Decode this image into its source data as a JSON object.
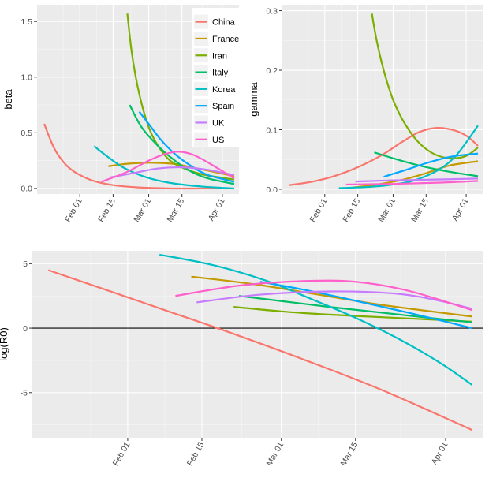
{
  "colors": {
    "China": "#F8766D",
    "France": "#C49A00",
    "Iran": "#7CAE00",
    "Italy": "#00BE67",
    "Korea": "#00BFC4",
    "Spain": "#00A9FF",
    "UK": "#C77CFF",
    "US": "#FF61CC"
  },
  "legend": {
    "placement": "inside-top-right of beta panel",
    "entries": [
      "China",
      "France",
      "Iran",
      "Italy",
      "Korea",
      "Spain",
      "UK",
      "US"
    ]
  },
  "chart_data": [
    {
      "type": "line",
      "id": "beta",
      "ylabel": "beta",
      "xlabel": "",
      "x_is_date": true,
      "xlim": [
        "2020-01-14",
        "2020-04-08"
      ],
      "ylim": [
        -0.05,
        1.65
      ],
      "yticks": [
        0.0,
        0.5,
        1.0,
        1.5
      ],
      "ytick_labels": [
        "0.0",
        "0.5",
        "1.0",
        "1.5"
      ],
      "xticks": [
        "2020-02-01",
        "2020-02-15",
        "2020-03-01",
        "2020-03-15",
        "2020-04-01"
      ],
      "xtick_labels": [
        "Feb 01",
        "Feb 15",
        "Mar 01",
        "Mar 15",
        "Apr 01"
      ],
      "grid": true,
      "series": [
        {
          "name": "China",
          "x": [
            "2020-01-17",
            "2020-01-21",
            "2020-01-25",
            "2020-01-29",
            "2020-02-03",
            "2020-02-08",
            "2020-02-15",
            "2020-02-25",
            "2020-03-10",
            "2020-03-25",
            "2020-04-06"
          ],
          "y": [
            0.58,
            0.37,
            0.24,
            0.16,
            0.1,
            0.06,
            0.03,
            0.01,
            0.0,
            0.0,
            0.0
          ]
        },
        {
          "name": "France",
          "x": [
            "2020-02-13",
            "2020-02-20",
            "2020-02-27",
            "2020-03-05",
            "2020-03-12",
            "2020-03-19",
            "2020-03-26",
            "2020-04-06"
          ],
          "y": [
            0.2,
            0.22,
            0.23,
            0.23,
            0.22,
            0.19,
            0.16,
            0.11
          ]
        },
        {
          "name": "Iran",
          "x": [
            "2020-02-21",
            "2020-02-23",
            "2020-02-26",
            "2020-03-01",
            "2020-03-05",
            "2020-03-10",
            "2020-03-17",
            "2020-03-25",
            "2020-04-06"
          ],
          "y": [
            1.57,
            1.2,
            0.85,
            0.55,
            0.38,
            0.25,
            0.17,
            0.12,
            0.08
          ]
        },
        {
          "name": "Italy",
          "x": [
            "2020-02-22",
            "2020-02-27",
            "2020-03-05",
            "2020-03-12",
            "2020-03-19",
            "2020-03-26",
            "2020-04-06"
          ],
          "y": [
            0.75,
            0.55,
            0.38,
            0.25,
            0.15,
            0.09,
            0.04
          ]
        },
        {
          "name": "Korea",
          "x": [
            "2020-02-07",
            "2020-02-13",
            "2020-02-20",
            "2020-02-29",
            "2020-03-10",
            "2020-03-22",
            "2020-04-06"
          ],
          "y": [
            0.38,
            0.28,
            0.18,
            0.1,
            0.05,
            0.02,
            0.0
          ]
        },
        {
          "name": "Spain",
          "x": [
            "2020-02-26",
            "2020-03-01",
            "2020-03-06",
            "2020-03-12",
            "2020-03-19",
            "2020-03-26",
            "2020-04-06"
          ],
          "y": [
            0.69,
            0.58,
            0.44,
            0.31,
            0.2,
            0.12,
            0.06
          ]
        },
        {
          "name": "UK",
          "x": [
            "2020-02-14",
            "2020-02-24",
            "2020-03-05",
            "2020-03-15",
            "2020-03-25",
            "2020-04-06"
          ],
          "y": [
            0.1,
            0.14,
            0.18,
            0.19,
            0.17,
            0.12
          ]
        },
        {
          "name": "US",
          "x": [
            "2020-02-10",
            "2020-02-20",
            "2020-03-01",
            "2020-03-08",
            "2020-03-14",
            "2020-03-20",
            "2020-03-27",
            "2020-04-06"
          ],
          "y": [
            0.06,
            0.14,
            0.25,
            0.31,
            0.33,
            0.3,
            0.22,
            0.09
          ]
        }
      ]
    },
    {
      "type": "line",
      "id": "gamma",
      "ylabel": "gamma",
      "xlabel": "",
      "x_is_date": true,
      "xlim": [
        "2020-01-14",
        "2020-04-08"
      ],
      "ylim": [
        -0.008,
        0.31
      ],
      "yticks": [
        0.0,
        0.1,
        0.2,
        0.3
      ],
      "ytick_labels": [
        "0.0",
        "0.1",
        "0.2",
        "0.3"
      ],
      "xticks": [
        "2020-02-01",
        "2020-02-15",
        "2020-03-01",
        "2020-03-15",
        "2020-04-01"
      ],
      "xtick_labels": [
        "Feb 01",
        "Feb 15",
        "Mar 01",
        "Mar 15",
        "Apr 01"
      ],
      "grid": true,
      "series": [
        {
          "name": "China",
          "x": [
            "2020-01-17",
            "2020-01-27",
            "2020-02-05",
            "2020-02-15",
            "2020-02-25",
            "2020-03-05",
            "2020-03-12",
            "2020-03-19",
            "2020-03-26",
            "2020-04-01",
            "2020-04-06"
          ],
          "y": [
            0.007,
            0.013,
            0.022,
            0.037,
            0.057,
            0.08,
            0.096,
            0.103,
            0.1,
            0.09,
            0.073
          ]
        },
        {
          "name": "France",
          "x": [
            "2020-02-13",
            "2020-02-23",
            "2020-03-05",
            "2020-03-15",
            "2020-03-25",
            "2020-04-06"
          ],
          "y": [
            0.003,
            0.008,
            0.016,
            0.027,
            0.04,
            0.047
          ]
        },
        {
          "name": "Iran",
          "x": [
            "2020-02-21",
            "2020-02-23",
            "2020-02-26",
            "2020-03-01",
            "2020-03-06",
            "2020-03-12",
            "2020-03-19",
            "2020-03-26",
            "2020-04-01",
            "2020-04-06"
          ],
          "y": [
            0.295,
            0.25,
            0.2,
            0.15,
            0.11,
            0.078,
            0.058,
            0.052,
            0.056,
            0.07
          ]
        },
        {
          "name": "Italy",
          "x": [
            "2020-02-22",
            "2020-03-01",
            "2020-03-10",
            "2020-03-20",
            "2020-03-30",
            "2020-04-06"
          ],
          "y": [
            0.062,
            0.052,
            0.042,
            0.033,
            0.026,
            0.022
          ]
        },
        {
          "name": "Korea",
          "x": [
            "2020-02-07",
            "2020-02-20",
            "2020-03-01",
            "2020-03-10",
            "2020-03-20",
            "2020-03-28",
            "2020-04-06"
          ],
          "y": [
            0.002,
            0.004,
            0.008,
            0.015,
            0.032,
            0.058,
            0.107
          ]
        },
        {
          "name": "Spain",
          "x": [
            "2020-02-26",
            "2020-03-06",
            "2020-03-16",
            "2020-03-26",
            "2020-04-06"
          ],
          "y": [
            0.021,
            0.032,
            0.045,
            0.055,
            0.06
          ]
        },
        {
          "name": "UK",
          "x": [
            "2020-02-14",
            "2020-03-01",
            "2020-03-15",
            "2020-04-06"
          ],
          "y": [
            0.013,
            0.015,
            0.016,
            0.018
          ]
        },
        {
          "name": "US",
          "x": [
            "2020-02-10",
            "2020-03-01",
            "2020-03-20",
            "2020-04-06"
          ],
          "y": [
            0.008,
            0.009,
            0.011,
            0.014
          ]
        }
      ]
    },
    {
      "type": "line",
      "id": "logR0",
      "ylabel": "log(R0)",
      "xlabel": "",
      "x_is_date": true,
      "xlim": [
        "2020-01-14",
        "2020-04-08"
      ],
      "ylim": [
        -8.5,
        6.0
      ],
      "yticks": [
        -5,
        0,
        5
      ],
      "ytick_labels": [
        "-5",
        "0",
        "5"
      ],
      "hline": 0,
      "xticks": [
        "2020-02-01",
        "2020-02-15",
        "2020-03-01",
        "2020-03-15",
        "2020-04-01"
      ],
      "xtick_labels": [
        "Feb 01",
        "Feb 15",
        "Mar 01",
        "Mar 15",
        "Apr 01"
      ],
      "grid": true,
      "series": [
        {
          "name": "China",
          "x": [
            "2020-01-17",
            "2020-01-27",
            "2020-02-08",
            "2020-02-20",
            "2020-03-05",
            "2020-03-20",
            "2020-04-06"
          ],
          "y": [
            4.5,
            3.1,
            1.4,
            -0.3,
            -2.4,
            -4.8,
            -7.9
          ]
        },
        {
          "name": "France",
          "x": [
            "2020-02-13",
            "2020-02-25",
            "2020-03-08",
            "2020-03-20",
            "2020-04-06"
          ],
          "y": [
            4.0,
            3.4,
            2.6,
            1.8,
            0.9
          ]
        },
        {
          "name": "Iran",
          "x": [
            "2020-02-21",
            "2020-03-01",
            "2020-03-10",
            "2020-03-20",
            "2020-03-30",
            "2020-04-06"
          ],
          "y": [
            1.65,
            1.3,
            1.05,
            0.85,
            0.65,
            0.5
          ]
        },
        {
          "name": "Italy",
          "x": [
            "2020-02-22",
            "2020-03-01",
            "2020-03-10",
            "2020-03-20",
            "2020-03-30",
            "2020-04-06"
          ],
          "y": [
            2.5,
            2.1,
            1.65,
            1.2,
            0.75,
            0.45
          ]
        },
        {
          "name": "Korea",
          "x": [
            "2020-02-07",
            "2020-02-17",
            "2020-02-27",
            "2020-03-07",
            "2020-03-15",
            "2020-03-23",
            "2020-03-31",
            "2020-04-06"
          ],
          "y": [
            5.7,
            4.9,
            3.7,
            2.2,
            0.8,
            -0.8,
            -2.7,
            -4.4
          ]
        },
        {
          "name": "Spain",
          "x": [
            "2020-02-26",
            "2020-03-05",
            "2020-03-12",
            "2020-03-19",
            "2020-03-26",
            "2020-04-06"
          ],
          "y": [
            3.6,
            3.0,
            2.4,
            1.75,
            1.1,
            0.0
          ]
        },
        {
          "name": "UK",
          "x": [
            "2020-02-14",
            "2020-02-26",
            "2020-03-10",
            "2020-03-22",
            "2020-03-30",
            "2020-04-06"
          ],
          "y": [
            2.0,
            2.6,
            2.85,
            2.7,
            2.2,
            1.5
          ]
        },
        {
          "name": "US",
          "x": [
            "2020-02-10",
            "2020-02-22",
            "2020-03-05",
            "2020-03-15",
            "2020-03-25",
            "2020-04-06"
          ],
          "y": [
            2.5,
            3.3,
            3.65,
            3.6,
            2.9,
            1.4
          ]
        }
      ]
    }
  ]
}
